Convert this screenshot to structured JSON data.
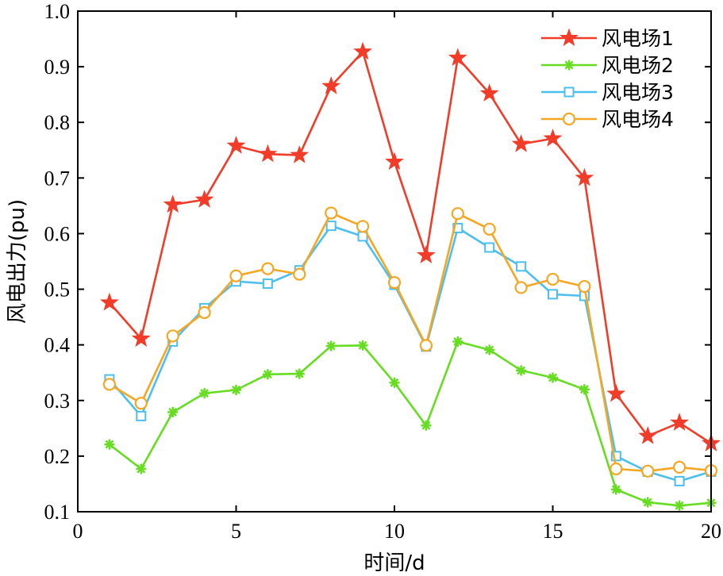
{
  "chart_data": {
    "type": "line",
    "xlabel": "时间/d",
    "ylabel": "风电出力(pu)",
    "xlim": [
      0,
      20
    ],
    "ylim": [
      0.1,
      1.0
    ],
    "xticks": [
      0,
      5,
      10,
      15,
      20
    ],
    "yticks": [
      0.1,
      0.2,
      0.3,
      0.4,
      0.5,
      0.6,
      0.7,
      0.8,
      0.9,
      1.0
    ],
    "xtick_labels": [
      "0",
      "5",
      "10",
      "15",
      "20"
    ],
    "ytick_labels": [
      "0.1",
      "0.2",
      "0.3",
      "0.4",
      "0.5",
      "0.6",
      "0.7",
      "0.8",
      "0.9",
      "1.0"
    ],
    "grid": false,
    "legend_position": "top-right",
    "x": [
      1,
      2,
      3,
      4,
      5,
      6,
      7,
      8,
      9,
      10,
      11,
      12,
      13,
      14,
      15,
      16,
      17,
      18,
      19,
      20
    ],
    "series": [
      {
        "name": "风电场1",
        "color": "#f03c28",
        "marker": "star",
        "values": [
          0.476,
          0.411,
          0.652,
          0.661,
          0.758,
          0.743,
          0.741,
          0.865,
          0.927,
          0.729,
          0.561,
          0.916,
          0.852,
          0.761,
          0.771,
          0.7,
          0.312,
          0.236,
          0.26,
          0.223
        ]
      },
      {
        "name": "风电场2",
        "color": "#66dd22",
        "marker": "asterisk",
        "values": [
          0.221,
          0.177,
          0.279,
          0.313,
          0.319,
          0.347,
          0.348,
          0.398,
          0.399,
          0.332,
          0.255,
          0.406,
          0.391,
          0.354,
          0.341,
          0.32,
          0.14,
          0.117,
          0.111,
          0.116
        ]
      },
      {
        "name": "风电场3",
        "color": "#4cbfee",
        "marker": "square",
        "values": [
          0.338,
          0.272,
          0.406,
          0.466,
          0.514,
          0.51,
          0.534,
          0.614,
          0.595,
          0.508,
          0.397,
          0.61,
          0.575,
          0.541,
          0.491,
          0.488,
          0.2,
          0.172,
          0.155,
          0.172
        ]
      },
      {
        "name": "风电场4",
        "color": "#f5a623",
        "marker": "circle",
        "values": [
          0.329,
          0.295,
          0.416,
          0.458,
          0.524,
          0.537,
          0.527,
          0.637,
          0.613,
          0.512,
          0.399,
          0.636,
          0.608,
          0.503,
          0.518,
          0.505,
          0.177,
          0.173,
          0.18,
          0.174
        ]
      }
    ]
  }
}
